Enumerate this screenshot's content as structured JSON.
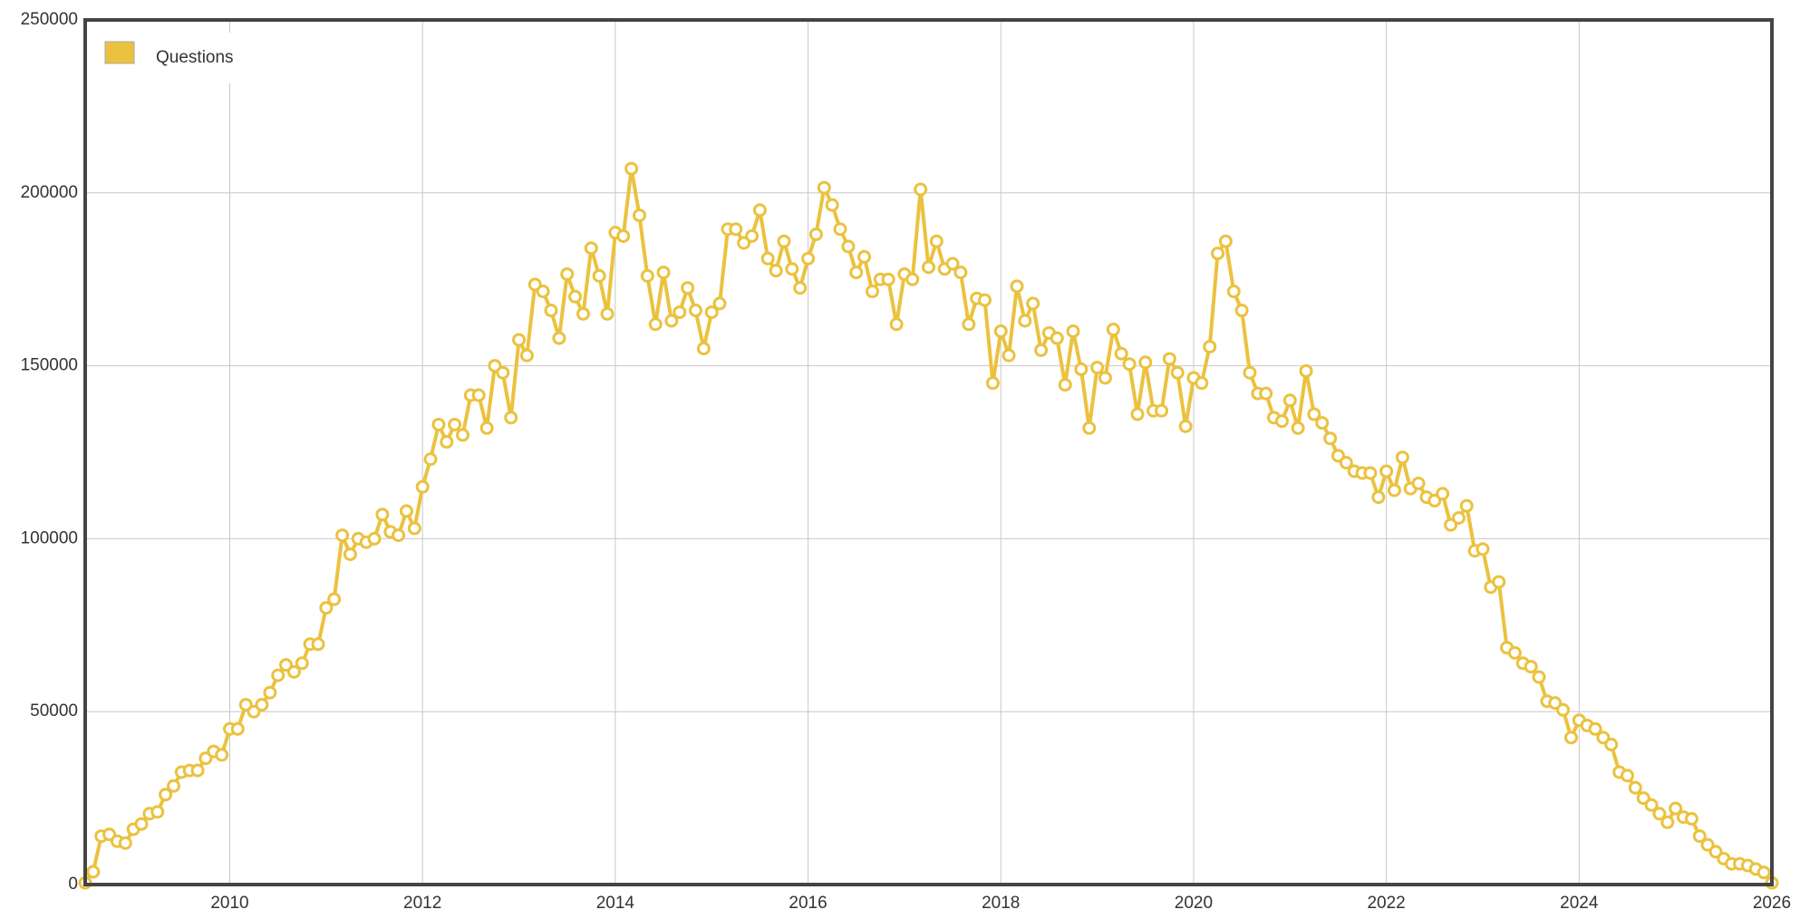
{
  "chart_data": {
    "type": "line",
    "x": [
      2008.5,
      2008.583,
      2008.667,
      2008.75,
      2008.833,
      2008.917,
      2009,
      2009.083,
      2009.167,
      2009.25,
      2009.333,
      2009.417,
      2009.5,
      2009.583,
      2009.667,
      2009.75,
      2009.833,
      2009.917,
      2010,
      2010.083,
      2010.167,
      2010.25,
      2010.333,
      2010.417,
      2010.5,
      2010.583,
      2010.667,
      2010.75,
      2010.833,
      2010.917,
      2011,
      2011.083,
      2011.167,
      2011.25,
      2011.333,
      2011.417,
      2011.5,
      2011.583,
      2011.667,
      2011.75,
      2011.833,
      2011.917,
      2012,
      2012.083,
      2012.167,
      2012.25,
      2012.333,
      2012.417,
      2012.5,
      2012.583,
      2012.667,
      2012.75,
      2012.833,
      2012.917,
      2013,
      2013.083,
      2013.167,
      2013.25,
      2013.333,
      2013.417,
      2013.5,
      2013.583,
      2013.667,
      2013.75,
      2013.833,
      2013.917,
      2014,
      2014.083,
      2014.167,
      2014.25,
      2014.333,
      2014.417,
      2014.5,
      2014.583,
      2014.667,
      2014.75,
      2014.833,
      2014.917,
      2015,
      2015.083,
      2015.167,
      2015.25,
      2015.333,
      2015.417,
      2015.5,
      2015.583,
      2015.667,
      2015.75,
      2015.833,
      2015.917,
      2016,
      2016.083,
      2016.167,
      2016.25,
      2016.333,
      2016.417,
      2016.5,
      2016.583,
      2016.667,
      2016.75,
      2016.833,
      2016.917,
      2017,
      2017.083,
      2017.167,
      2017.25,
      2017.333,
      2017.417,
      2017.5,
      2017.583,
      2017.667,
      2017.75,
      2017.833,
      2017.917,
      2018,
      2018.083,
      2018.167,
      2018.25,
      2018.333,
      2018.417,
      2018.5,
      2018.583,
      2018.667,
      2018.75,
      2018.833,
      2018.917,
      2019,
      2019.083,
      2019.167,
      2019.25,
      2019.333,
      2019.417,
      2019.5,
      2019.583,
      2019.667,
      2019.75,
      2019.833,
      2019.917,
      2020,
      2020.083,
      2020.167,
      2020.25,
      2020.333,
      2020.417,
      2020.5,
      2020.583,
      2020.667,
      2020.75,
      2020.833,
      2020.917,
      2021,
      2021.083,
      2021.167,
      2021.25,
      2021.333,
      2021.417,
      2021.5,
      2021.583,
      2021.667,
      2021.75,
      2021.833,
      2021.917,
      2022,
      2022.083,
      2022.167,
      2022.25,
      2022.333,
      2022.417,
      2022.5,
      2022.583,
      2022.667,
      2022.75,
      2022.833,
      2022.917,
      2023,
      2023.083,
      2023.167,
      2023.25,
      2023.333,
      2023.417,
      2023.5,
      2023.583,
      2023.667,
      2023.75,
      2023.833,
      2023.917,
      2024,
      2024.083,
      2024.167,
      2024.25,
      2024.333,
      2024.417,
      2024.5,
      2024.583,
      2024.667,
      2024.75,
      2024.833,
      2024.917,
      2025,
      2025.083,
      2025.167,
      2025.25,
      2025.333,
      2025.417,
      2025.5,
      2025.583,
      2025.667,
      2025.75,
      2025.833,
      2025.917,
      2026
    ],
    "series": [
      {
        "name": "Questions",
        "color": "#ebc23f",
        "values": [
          500,
          3700,
          14000,
          14500,
          12500,
          12000,
          16000,
          17500,
          20500,
          21000,
          26000,
          28500,
          32500,
          33000,
          33000,
          36500,
          38500,
          37500,
          45000,
          45000,
          52000,
          50000,
          52000,
          55500,
          60500,
          63500,
          61500,
          64000,
          69500,
          69500,
          80000,
          82500,
          101000,
          95500,
          100000,
          99000,
          100000,
          107000,
          102000,
          101000,
          108000,
          103000,
          115000,
          123000,
          133000,
          128000,
          133000,
          130000,
          141500,
          141500,
          132000,
          150000,
          148000,
          135000,
          157500,
          153000,
          173500,
          171500,
          166000,
          158000,
          176500,
          170000,
          165000,
          184000,
          176000,
          165000,
          188500,
          187500,
          207000,
          193500,
          176000,
          162000,
          177000,
          163000,
          165500,
          172500,
          166000,
          155000,
          165500,
          168000,
          189500,
          189500,
          185500,
          187500,
          195000,
          181000,
          177500,
          186000,
          178000,
          172500,
          181000,
          188000,
          201500,
          196500,
          189500,
          184500,
          177000,
          181500,
          171500,
          175000,
          175000,
          162000,
          176500,
          175000,
          201000,
          178500,
          186000,
          178000,
          179500,
          177000,
          162000,
          169500,
          169000,
          145000,
          160000,
          153000,
          173000,
          163000,
          168000,
          154500,
          159500,
          158000,
          144500,
          160000,
          149000,
          132000,
          149500,
          146500,
          160500,
          153500,
          150500,
          136000,
          151000,
          137000,
          137000,
          152000,
          148000,
          132500,
          146500,
          145000,
          155500,
          182500,
          186000,
          171500,
          166000,
          148000,
          142000,
          142000,
          135000,
          134000,
          140000,
          132000,
          148500,
          136000,
          133500,
          129000,
          124000,
          122000,
          119500,
          119000,
          119000,
          112000,
          119500,
          114000,
          123500,
          114500,
          116000,
          112000,
          111000,
          113000,
          104000,
          106000,
          109500,
          96500,
          97000,
          86000,
          87500,
          68500,
          67000,
          64000,
          63000,
          60000,
          53000,
          52500,
          50500,
          42500,
          47500,
          46000,
          45000,
          42500,
          40500,
          32500,
          31500,
          28000,
          25000,
          23000,
          20500,
          18000,
          22000,
          19500,
          19000,
          14000,
          11500,
          9500,
          7500,
          6000,
          6000,
          5500,
          4500,
          3500,
          500
        ]
      }
    ],
    "xlim": [
      2008.5,
      2026
    ],
    "xticks": [
      2010,
      2012,
      2014,
      2016,
      2018,
      2020,
      2022,
      2024,
      2026
    ],
    "ylim": [
      0,
      250000
    ],
    "yticks": [
      0,
      50000,
      100000,
      150000,
      200000,
      250000
    ],
    "grid": true,
    "legend": "upper-left"
  }
}
